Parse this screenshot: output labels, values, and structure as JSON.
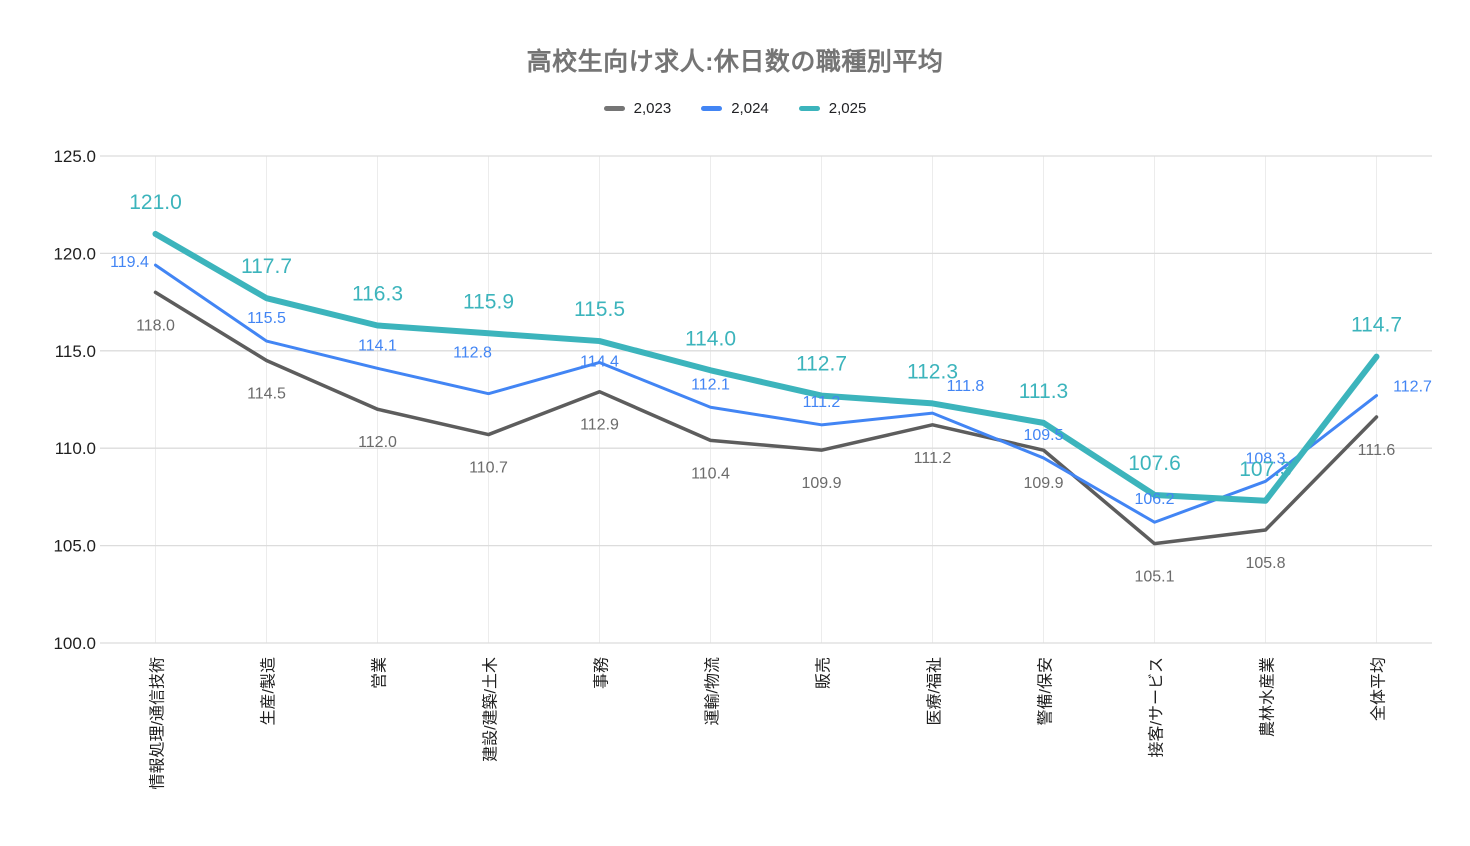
{
  "header": {
    "title": "高校生向け求人:休日数の職種別平均"
  },
  "chart_data": {
    "type": "line",
    "title": "高校生向け求人:休日数の職種別平均",
    "categories": [
      "情報処理/通信技術",
      "生産/製造",
      "営業",
      "建設/建築/土木",
      "事務",
      "運輸/物流",
      "販売",
      "医療/福祉",
      "警備/保安",
      "接客/サービス",
      "農林水産業",
      "全体平均"
    ],
    "series": [
      {
        "name": "2,023",
        "color": "#5d5d5d",
        "label_color": "#6b6b6b",
        "values": [
          118.0,
          114.5,
          112.0,
          110.7,
          112.9,
          110.4,
          109.9,
          111.2,
          109.9,
          105.1,
          105.8,
          111.6
        ]
      },
      {
        "name": "2,024",
        "color": "#4285f4",
        "label_color": "#4285f4",
        "values": [
          119.4,
          115.5,
          114.1,
          112.8,
          114.4,
          112.1,
          111.2,
          111.8,
          109.5,
          106.2,
          108.3,
          112.7
        ]
      },
      {
        "name": "2,025",
        "color": "#3cb4bc",
        "label_color": "#3cb4bc",
        "values": [
          121.0,
          117.7,
          116.3,
          115.9,
          115.5,
          114.0,
          112.7,
          112.3,
          111.3,
          107.6,
          107.3,
          114.7
        ]
      }
    ],
    "ylim": [
      100,
      125
    ],
    "yticks": [
      100,
      105,
      110,
      115,
      120,
      125
    ],
    "ytick_labels": [
      "100.0",
      "105.0",
      "110.0",
      "115.0",
      "120.0",
      "125.0"
    ],
    "grid": true,
    "legend_position": "top",
    "data_labels": true,
    "colors": {
      "title": "#757575",
      "axis_text": "#1f1f1f",
      "gridline_h": "#dcdcdc",
      "gridline_v": "#ececec",
      "legend_text": "#202124",
      "background": "#ffffff"
    }
  }
}
